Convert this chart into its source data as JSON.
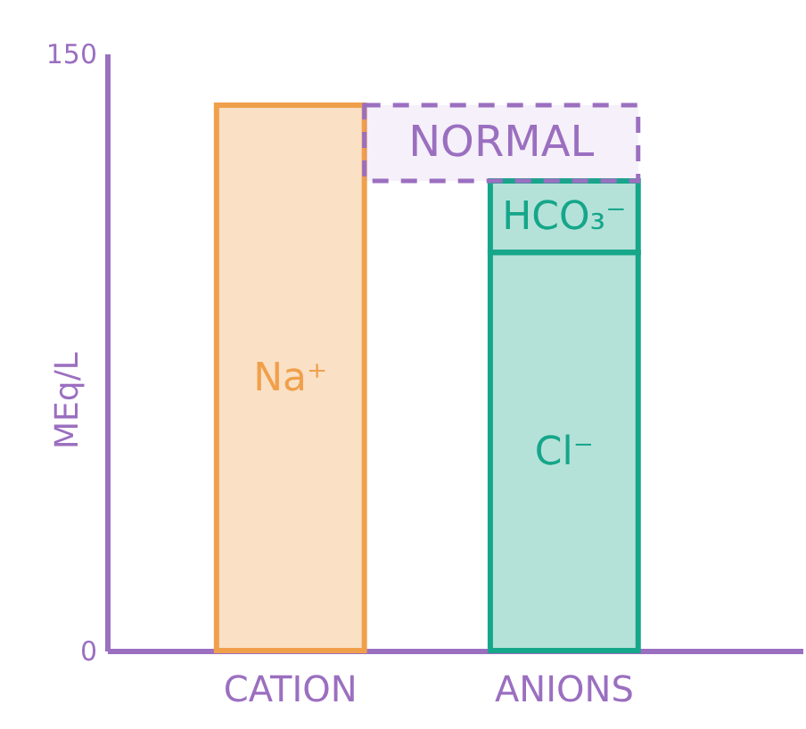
{
  "chart_data": {
    "type": "bar",
    "ylabel": "MEq/L",
    "categories": [
      "CATION",
      "ANIONS"
    ],
    "series": [
      {
        "name": "Na⁺",
        "color": "#f0a04b",
        "values": [
          137,
          null
        ]
      },
      {
        "name": "Cl⁻",
        "color": "#16a68a",
        "values": [
          null,
          100
        ]
      },
      {
        "name": "HCO₃⁻",
        "color": "#16a68a",
        "values": [
          null,
          18
        ]
      }
    ],
    "stacked": true,
    "ylim": [
      0,
      150
    ],
    "yticks": [
      0,
      150
    ],
    "bands": [
      {
        "axis": "y",
        "from": 118,
        "to": 137,
        "label": "NORMAL",
        "color": "#9b6fc0"
      }
    ],
    "grid": false,
    "legend": false
  }
}
